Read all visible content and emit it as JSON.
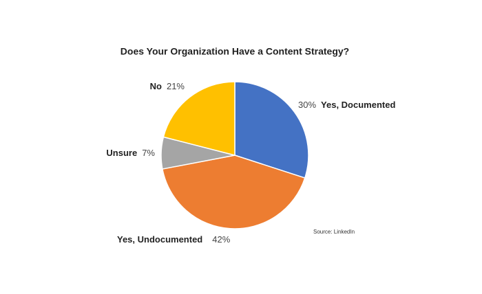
{
  "chart_data": {
    "type": "pie",
    "title": "Does Your Organization Have a Content Strategy?",
    "categories": [
      "Yes, Documented",
      "Yes, Undocumented",
      "Unsure",
      "No"
    ],
    "values": [
      30,
      42,
      7,
      21
    ],
    "value_labels": [
      "30%",
      "42%",
      "7%",
      "21%"
    ],
    "colors": [
      "#4472c4",
      "#ed7d31",
      "#a5a5a5",
      "#ffc000"
    ],
    "annotation": "Source: LinkedIn"
  }
}
